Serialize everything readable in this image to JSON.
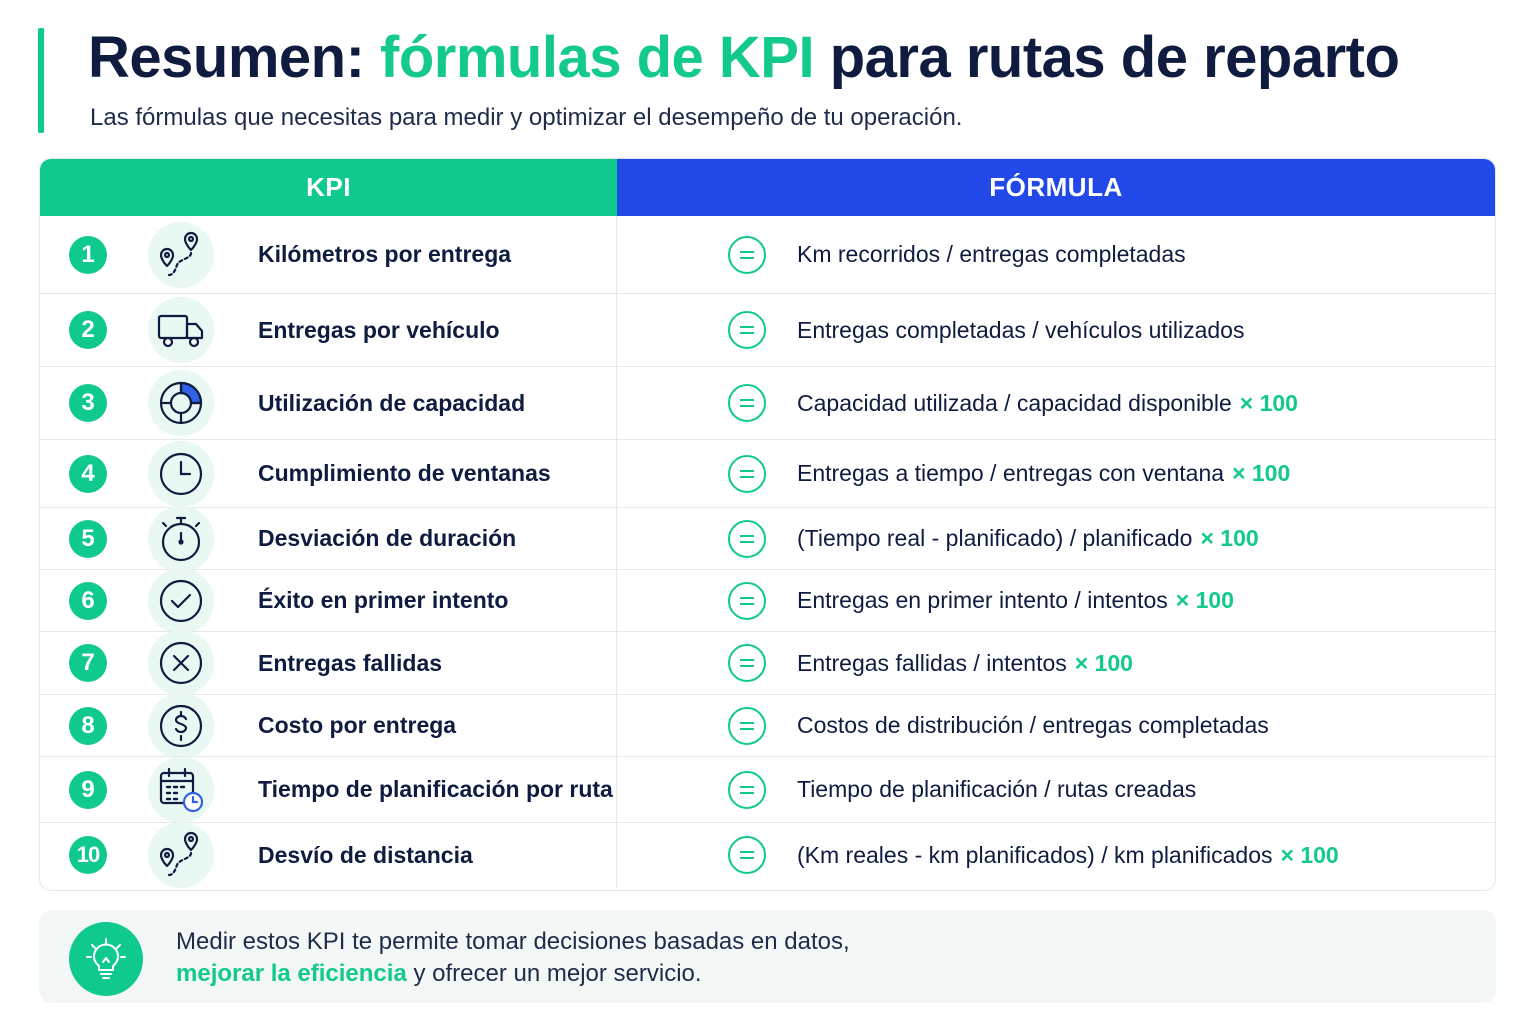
{
  "header": {
    "title_part1": "Resumen:",
    "title_highlight": "fórmulas de KPI",
    "title_part2": "para rutas de reparto",
    "subtitle": "Las fórmulas que necesitas para medir y optimizar el desempeño de tu operación."
  },
  "table": {
    "col_kpi": "KPI",
    "col_formula": "FÓRMULA",
    "rows": [
      {
        "num": "1",
        "icon": "route-pin-icon",
        "kpi": "Kilómetros por entrega",
        "formula": "Km recorridos / entregas completadas",
        "mult": ""
      },
      {
        "num": "2",
        "icon": "truck-icon",
        "kpi": "Entregas por vehículo",
        "formula": "Entregas completadas / vehículos utilizados",
        "mult": ""
      },
      {
        "num": "3",
        "icon": "donut-chart-icon",
        "kpi": "Utilización de capacidad",
        "formula": "Capacidad utilizada / capacidad disponible",
        "mult": "× 100"
      },
      {
        "num": "4",
        "icon": "clock-icon",
        "kpi": "Cumplimiento de ventanas",
        "formula": "Entregas a tiempo / entregas con ventana",
        "mult": "× 100"
      },
      {
        "num": "5",
        "icon": "stopwatch-icon",
        "kpi": "Desviación de duración",
        "formula": "(Tiempo real - planificado) / planificado",
        "mult": "× 100"
      },
      {
        "num": "6",
        "icon": "check-circle-icon",
        "kpi": "Éxito en primer intento",
        "formula": "Entregas en primer intento / intentos",
        "mult": "× 100"
      },
      {
        "num": "7",
        "icon": "x-circle-icon",
        "kpi": "Entregas fallidas",
        "formula": "Entregas fallidas / intentos",
        "mult": "× 100"
      },
      {
        "num": "8",
        "icon": "dollar-circle-icon",
        "kpi": "Costo por entrega",
        "formula": "Costos de distribución / entregas completadas",
        "mult": ""
      },
      {
        "num": "9",
        "icon": "calendar-clock-icon",
        "kpi": "Tiempo de planificación por ruta",
        "formula": "Tiempo de planificación / rutas creadas",
        "mult": ""
      },
      {
        "num": "10",
        "icon": "route-pin-icon",
        "kpi": "Desvío de distancia",
        "formula": "(Km reales - km planificados) / km planificados",
        "mult": "× 100"
      }
    ]
  },
  "footer": {
    "line1": "Medir estos KPI te permite tomar decisiones basadas en datos,",
    "highlight": "mejorar la eficiencia",
    "line2_rest": " y ofrecer un mejor servicio.",
    "icon": "lightbulb-icon"
  },
  "colors": {
    "accent_green": "#10c98f",
    "accent_blue": "#2249e8",
    "text_dark": "#0f1c3f"
  }
}
